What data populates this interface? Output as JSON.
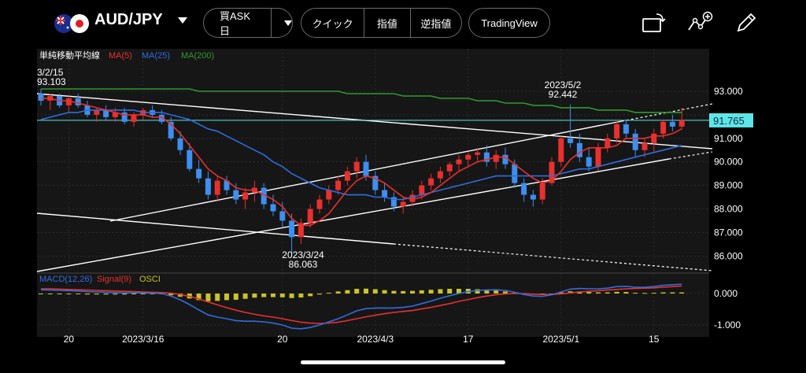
{
  "toolbar": {
    "pair": "AUD/JPY",
    "order_type": "買ASK 日",
    "buttons": [
      "クイック",
      "指値",
      "逆指値"
    ],
    "tradingview": "TradingView"
  },
  "legend": {
    "ma_title": "単純移動平均線",
    "ma5": "MA(5)",
    "ma25": "MA(25)",
    "ma200": "MA(200)",
    "macd": "MACD(12,26)",
    "signal": "Signal(9)",
    "osci": "OSCI"
  },
  "colors": {
    "ma5": "#e8302e",
    "ma25": "#2f6de0",
    "ma200": "#2e9a2e",
    "up": "#e8302e",
    "down": "#3d8ff0",
    "osci": "#c8c42a",
    "price_line": "#5ee6e6"
  },
  "chart_data": {
    "type": "candlestick",
    "price_axis": {
      "ticks": [
        "93.000",
        "92.000",
        "91.000",
        "90.000",
        "89.000",
        "88.000",
        "87.000",
        "86.000"
      ],
      "ylim": [
        85.4,
        93.5
      ]
    },
    "macd_axis": {
      "ticks": [
        "0.000",
        "-1.000"
      ]
    },
    "x_ticks": [
      "20",
      "2023/3/16",
      "20",
      "2023/4/3",
      "17",
      "2023/5/1",
      "15"
    ],
    "current_price": "91.765",
    "annotations": [
      {
        "date": "3/2/15",
        "value": "93.103"
      },
      {
        "date": "2023/3/24",
        "value": "86.063"
      },
      {
        "date": "2023/5/2",
        "value": "92.442"
      }
    ],
    "candles": [
      [
        92.9,
        93.1,
        92.4,
        92.6
      ],
      [
        92.6,
        92.9,
        92.2,
        92.8
      ],
      [
        92.8,
        92.9,
        92.3,
        92.4
      ],
      [
        92.4,
        92.8,
        92.1,
        92.7
      ],
      [
        92.7,
        92.9,
        92.3,
        92.4
      ],
      [
        92.4,
        92.6,
        91.9,
        92.0
      ],
      [
        92.0,
        92.3,
        91.7,
        92.2
      ],
      [
        92.2,
        92.4,
        91.8,
        91.9
      ],
      [
        91.9,
        92.3,
        91.7,
        92.1
      ],
      [
        92.1,
        92.3,
        91.6,
        91.7
      ],
      [
        91.7,
        92.1,
        91.5,
        92.0
      ],
      [
        92.0,
        92.3,
        91.8,
        92.2
      ],
      [
        92.2,
        92.4,
        91.9,
        92.0
      ],
      [
        92.0,
        92.2,
        91.6,
        91.7
      ],
      [
        91.7,
        91.9,
        90.9,
        91.0
      ],
      [
        91.0,
        91.3,
        90.3,
        90.5
      ],
      [
        90.5,
        90.8,
        89.6,
        89.7
      ],
      [
        89.7,
        90.1,
        89.1,
        89.3
      ],
      [
        89.3,
        89.6,
        88.4,
        88.6
      ],
      [
        88.6,
        89.4,
        88.3,
        89.2
      ],
      [
        89.2,
        89.4,
        88.6,
        88.8
      ],
      [
        88.8,
        89.1,
        88.2,
        88.4
      ],
      [
        88.4,
        88.9,
        88.0,
        88.7
      ],
      [
        88.7,
        89.2,
        88.3,
        88.9
      ],
      [
        88.9,
        89.1,
        88.0,
        88.2
      ],
      [
        88.2,
        88.6,
        87.7,
        87.9
      ],
      [
        87.9,
        88.3,
        87.2,
        87.5
      ],
      [
        87.5,
        87.8,
        86.06,
        86.8
      ],
      [
        86.8,
        87.6,
        86.5,
        87.4
      ],
      [
        87.4,
        88.2,
        87.2,
        88.0
      ],
      [
        88.0,
        88.6,
        87.8,
        88.4
      ],
      [
        88.4,
        89.0,
        88.2,
        88.8
      ],
      [
        88.8,
        89.4,
        88.6,
        89.2
      ],
      [
        89.2,
        89.8,
        89.0,
        89.6
      ],
      [
        89.6,
        90.2,
        89.3,
        90.0
      ],
      [
        90.0,
        90.3,
        89.2,
        89.4
      ],
      [
        89.4,
        89.6,
        88.6,
        88.8
      ],
      [
        88.8,
        89.1,
        88.3,
        88.5
      ],
      [
        88.5,
        88.7,
        87.9,
        88.1
      ],
      [
        88.1,
        88.5,
        87.8,
        88.3
      ],
      [
        88.3,
        88.8,
        88.1,
        88.6
      ],
      [
        88.6,
        89.2,
        88.4,
        89.0
      ],
      [
        89.0,
        89.5,
        88.8,
        89.3
      ],
      [
        89.3,
        89.8,
        89.1,
        89.6
      ],
      [
        89.6,
        90.0,
        89.4,
        89.9
      ],
      [
        89.9,
        90.3,
        89.6,
        90.1
      ],
      [
        90.1,
        90.4,
        89.8,
        90.3
      ],
      [
        90.3,
        90.6,
        90.0,
        90.4
      ],
      [
        90.4,
        90.7,
        89.8,
        90.0
      ],
      [
        90.0,
        90.5,
        89.7,
        90.3
      ],
      [
        90.3,
        90.6,
        89.7,
        89.9
      ],
      [
        89.9,
        90.1,
        88.9,
        89.1
      ],
      [
        89.1,
        89.3,
        88.3,
        88.6
      ],
      [
        88.6,
        88.8,
        88.1,
        88.4
      ],
      [
        88.4,
        89.3,
        88.2,
        89.1
      ],
      [
        89.1,
        90.2,
        89.0,
        90.0
      ],
      [
        90.0,
        91.1,
        89.8,
        91.0
      ],
      [
        91.0,
        92.44,
        90.6,
        90.8
      ],
      [
        90.8,
        91.2,
        90.0,
        90.2
      ],
      [
        90.2,
        90.6,
        89.6,
        89.8
      ],
      [
        89.8,
        90.8,
        89.6,
        90.6
      ],
      [
        90.6,
        91.2,
        90.4,
        91.0
      ],
      [
        91.0,
        91.8,
        90.8,
        91.6
      ],
      [
        91.6,
        91.8,
        91.0,
        91.2
      ],
      [
        91.2,
        91.4,
        90.2,
        90.5
      ],
      [
        90.5,
        91.0,
        90.2,
        90.8
      ],
      [
        90.8,
        91.4,
        90.4,
        91.2
      ],
      [
        91.2,
        91.8,
        91.0,
        91.7
      ],
      [
        91.7,
        92.0,
        91.3,
        91.5
      ],
      [
        91.5,
        92.3,
        91.4,
        91.77
      ]
    ],
    "ma5": [
      92.7,
      92.7,
      92.6,
      92.6,
      92.5,
      92.4,
      92.3,
      92.2,
      92.1,
      92.0,
      92.0,
      92.0,
      91.9,
      91.9,
      91.6,
      91.2,
      90.7,
      90.2,
      89.7,
      89.4,
      89.2,
      88.9,
      88.8,
      88.8,
      88.6,
      88.4,
      88.1,
      87.6,
      87.3,
      87.3,
      87.5,
      87.8,
      88.3,
      88.8,
      89.2,
      89.4,
      89.3,
      89.1,
      88.8,
      88.5,
      88.4,
      88.5,
      88.7,
      89.0,
      89.3,
      89.6,
      89.8,
      90.0,
      90.1,
      90.2,
      90.2,
      89.9,
      89.6,
      89.3,
      89.1,
      89.2,
      89.6,
      90.1,
      90.4,
      90.6,
      90.6,
      90.6,
      90.7,
      91.0,
      91.0,
      91.0,
      91.1,
      91.1,
      91.2,
      91.4
    ],
    "ma25": [
      91.8,
      91.9,
      92.0,
      92.1,
      92.1,
      92.2,
      92.2,
      92.2,
      92.2,
      92.2,
      92.2,
      92.1,
      92.1,
      92.1,
      92.0,
      91.9,
      91.8,
      91.6,
      91.4,
      91.3,
      91.1,
      90.9,
      90.7,
      90.5,
      90.3,
      90.0,
      89.8,
      89.5,
      89.3,
      89.1,
      88.9,
      88.8,
      88.7,
      88.6,
      88.6,
      88.6,
      88.5,
      88.5,
      88.4,
      88.4,
      88.5,
      88.6,
      88.7,
      88.8,
      88.9,
      89.0,
      89.1,
      89.2,
      89.3,
      89.4,
      89.4,
      89.4,
      89.4,
      89.4,
      89.4,
      89.4,
      89.5,
      89.6,
      89.7,
      89.7,
      89.8,
      89.9,
      90.0,
      90.1,
      90.2,
      90.3,
      90.4,
      90.5,
      90.6,
      90.7
    ],
    "ma200": [
      93.1,
      93.1,
      93.1,
      93.1,
      93.1,
      93.1,
      93.1,
      93.1,
      93.1,
      93.1,
      93.1,
      93.1,
      93.1,
      93.1,
      93.1,
      93.1,
      93.1,
      93.0,
      93.0,
      93.0,
      93.0,
      93.0,
      93.0,
      93.0,
      93.0,
      93.0,
      93.0,
      93.0,
      93.0,
      93.0,
      93.0,
      93.0,
      93.0,
      92.9,
      92.9,
      92.9,
      92.9,
      92.9,
      92.9,
      92.8,
      92.8,
      92.8,
      92.8,
      92.7,
      92.7,
      92.7,
      92.7,
      92.6,
      92.6,
      92.6,
      92.5,
      92.5,
      92.5,
      92.4,
      92.4,
      92.4,
      92.3,
      92.3,
      92.3,
      92.3,
      92.2,
      92.2,
      92.2,
      92.2,
      92.1,
      92.1,
      92.1,
      92.1,
      92.1,
      92.1
    ],
    "macd": [
      0.12,
      0.11,
      0.1,
      0.09,
      0.08,
      0.06,
      0.05,
      0.04,
      0.03,
      0.02,
      0.02,
      0.02,
      0.01,
      0.0,
      -0.08,
      -0.2,
      -0.35,
      -0.52,
      -0.68,
      -0.75,
      -0.8,
      -0.86,
      -0.88,
      -0.88,
      -0.9,
      -0.94,
      -1.0,
      -1.1,
      -1.12,
      -1.08,
      -1.0,
      -0.9,
      -0.8,
      -0.68,
      -0.55,
      -0.48,
      -0.46,
      -0.46,
      -0.46,
      -0.44,
      -0.4,
      -0.32,
      -0.24,
      -0.15,
      -0.07,
      0.0,
      0.06,
      0.1,
      0.11,
      0.12,
      0.1,
      0.04,
      -0.03,
      -0.08,
      -0.09,
      -0.04,
      0.05,
      0.14,
      0.16,
      0.15,
      0.15,
      0.17,
      0.22,
      0.23,
      0.2,
      0.2,
      0.22,
      0.26,
      0.28,
      0.3
    ],
    "signal": [
      0.15,
      0.15,
      0.14,
      0.13,
      0.12,
      0.11,
      0.1,
      0.09,
      0.08,
      0.07,
      0.06,
      0.05,
      0.04,
      0.03,
      0.01,
      -0.03,
      -0.09,
      -0.17,
      -0.27,
      -0.36,
      -0.45,
      -0.53,
      -0.6,
      -0.66,
      -0.71,
      -0.75,
      -0.8,
      -0.86,
      -0.91,
      -0.94,
      -0.95,
      -0.94,
      -0.91,
      -0.86,
      -0.8,
      -0.74,
      -0.69,
      -0.64,
      -0.6,
      -0.57,
      -0.54,
      -0.49,
      -0.44,
      -0.38,
      -0.32,
      -0.25,
      -0.19,
      -0.13,
      -0.08,
      -0.04,
      -0.01,
      0.0,
      0.0,
      -0.02,
      -0.03,
      -0.03,
      -0.01,
      0.02,
      0.05,
      0.07,
      0.09,
      0.11,
      0.13,
      0.15,
      0.16,
      0.17,
      0.18,
      0.2,
      0.22,
      0.24
    ]
  }
}
